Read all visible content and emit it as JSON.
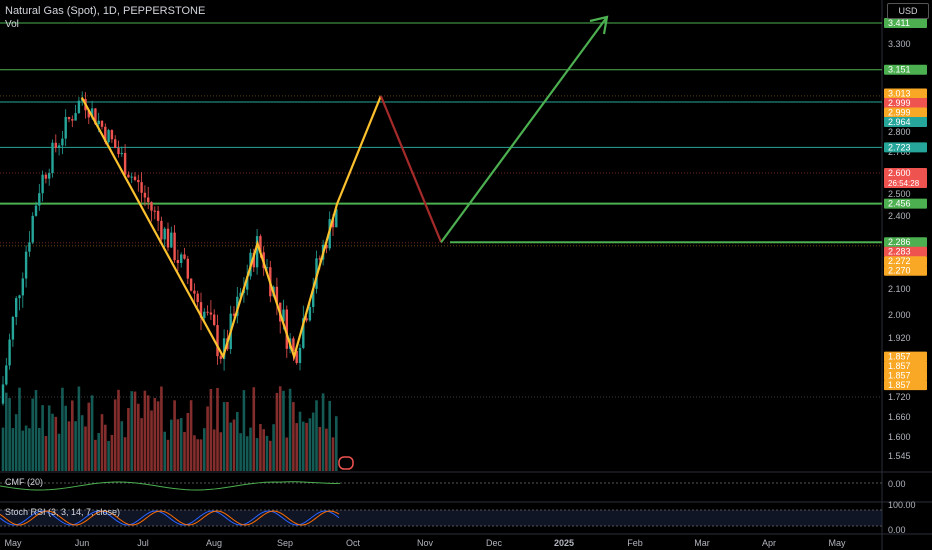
{
  "header": {
    "title": "Natural Gas (Spot), 1D, PEPPERSTONE",
    "vol_label": "Vol",
    "currency": "USD"
  },
  "indicators": {
    "cmf_label": "CMF (20)",
    "stoch_label": "Stoch RSI (3, 3, 14, 7, close)",
    "cmf_scale": [
      "0.00"
    ],
    "stoch_scale": [
      "100.00",
      "0.00"
    ]
  },
  "colors": {
    "up": "#26a69a",
    "down": "#ef5350",
    "pattern": "#fbc02d",
    "projection_down": "#a52a2a",
    "projection_up": "#4caf50",
    "level_green": "#4caf50",
    "level_teal": "#26a69a"
  },
  "chart_data": {
    "type": "candlestick",
    "instrument": "Natural Gas (Spot)",
    "timeframe": "1D",
    "x_labels": [
      "May",
      "Jun",
      "Jul",
      "Aug",
      "Sep",
      "Oct",
      "Nov",
      "Dec",
      "2025",
      "Feb",
      "Mar",
      "Apr",
      "May"
    ],
    "y_ticks": [
      3.3,
      2.9,
      2.8,
      2.7,
      2.5,
      2.4,
      2.2,
      2.1,
      2.0,
      1.92,
      1.72,
      1.66,
      1.6,
      1.545
    ],
    "price_tags": [
      {
        "label": "3.411",
        "value": 3.411,
        "color": "#4caf50"
      },
      {
        "label": "3.151",
        "value": 3.151,
        "color": "#4caf50"
      },
      {
        "label": "3.013",
        "value": 3.013,
        "color": "#f9a825"
      },
      {
        "label": "2.999",
        "value": 2.999,
        "color": "#ef5350"
      },
      {
        "label": "2.999",
        "value": 2.999,
        "color": "#f9a825"
      },
      {
        "label": "2.964",
        "value": 2.964,
        "color": "#26a69a"
      },
      {
        "label": "2.723",
        "value": 2.723,
        "color": "#26a69a"
      },
      {
        "label": "2.600",
        "value": 2.6,
        "color": "#ef5350",
        "sub": "26:54:28"
      },
      {
        "label": "2.456",
        "value": 2.456,
        "color": "#4caf50"
      },
      {
        "label": "2.286",
        "value": 2.286,
        "color": "#4caf50"
      },
      {
        "label": "2.283",
        "value": 2.283,
        "color": "#ef5350"
      },
      {
        "label": "2.272",
        "value": 2.272,
        "color": "#f9a825"
      },
      {
        "label": "2.270",
        "value": 2.27,
        "color": "#f9a825"
      },
      {
        "label": "1.857",
        "value": 1.857,
        "color": "#f9a825"
      },
      {
        "label": "1.857",
        "value": 1.857,
        "color": "#f9a825"
      },
      {
        "label": "1.857",
        "value": 1.857,
        "color": "#f9a825"
      },
      {
        "label": "1.857",
        "value": 1.857,
        "color": "#f9a825"
      }
    ],
    "horizontal_levels": [
      3.411,
      3.151,
      2.964,
      2.723,
      2.456,
      2.286
    ],
    "pattern_points": [
      {
        "date": "Jun 4",
        "price": 2.99
      },
      {
        "date": "Aug 5",
        "price": 1.857
      },
      {
        "date": "Aug 20",
        "price": 2.28
      },
      {
        "date": "Sep 5",
        "price": 1.857
      },
      {
        "date": "Sep 24",
        "price": 2.456
      },
      {
        "date": "Oct 13",
        "price": 2.999
      }
    ],
    "projection": [
      {
        "date": "Oct 13",
        "price": 2.999
      },
      {
        "date": "Nov 8",
        "price": 2.286
      },
      {
        "date": "Jan 15",
        "price": 3.411
      }
    ],
    "last_price": 2.6,
    "countdown": "26:54:28"
  }
}
